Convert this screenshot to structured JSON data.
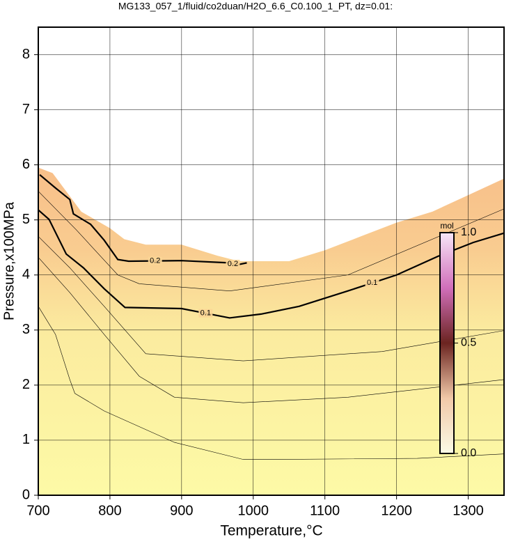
{
  "chart_data": {
    "type": "contour",
    "title": "MG133_057_1/fluid/co2duan/H2O_6.6_C0.100_1_PT, dz=0.01:",
    "xlabel": "Temperature,°C",
    "ylabel": "Pressure,x100MPa",
    "xlim": [
      700,
      1350
    ],
    "ylim": [
      0,
      8.5
    ],
    "xticks": [
      700,
      800,
      900,
      1000,
      1100,
      1200,
      1300
    ],
    "yticks": [
      0,
      1,
      2,
      3,
      4,
      5,
      6,
      7,
      8
    ],
    "grid": true,
    "field": {
      "x": [
        700,
        720,
        740,
        760,
        780,
        800,
        820,
        850,
        900,
        950,
        980,
        1000,
        1050,
        1100,
        1150,
        1200,
        1250,
        1300,
        1350
      ],
      "values": [
        5.95,
        5.85,
        5.5,
        5.15,
        5.0,
        4.85,
        4.65,
        4.55,
        4.55,
        4.35,
        4.25,
        4.25,
        4.25,
        4.45,
        4.7,
        4.95,
        5.15,
        5.45,
        5.75
      ]
    },
    "series": [
      {
        "name": "0.2",
        "color": "#000000",
        "linewidth": 2.2,
        "x": [
          702,
          724,
          744,
          749,
          773,
          792,
          811,
          826,
          900,
          967,
          976,
          991
        ],
        "values": [
          5.82,
          5.58,
          5.37,
          5.11,
          4.92,
          4.63,
          4.28,
          4.25,
          4.26,
          4.22,
          4.18,
          4.22
        ]
      },
      {
        "name": "0.1",
        "color": "#000000",
        "linewidth": 2.2,
        "x": [
          700,
          715,
          739,
          763,
          792,
          821,
          900,
          967,
          1011,
          1064,
          1132,
          1200,
          1258,
          1307,
          1350
        ],
        "values": [
          5.18,
          5.01,
          4.38,
          4.13,
          3.75,
          3.41,
          3.39,
          3.22,
          3.29,
          3.43,
          3.71,
          4.0,
          4.34,
          4.59,
          4.76
        ]
      },
      {
        "color": "#000000",
        "linewidth": 0.6,
        "x": [
          700,
          753,
          811,
          841,
          967,
          1132,
          1350
        ],
        "values": [
          5.52,
          4.82,
          4.0,
          3.84,
          3.71,
          4.0,
          5.2
        ]
      },
      {
        "color": "#000000",
        "linewidth": 0.6,
        "x": [
          700,
          744,
          792,
          850,
          986,
          1180,
          1350
        ],
        "values": [
          4.7,
          4.13,
          3.43,
          2.57,
          2.44,
          2.61,
          2.99
        ]
      },
      {
        "color": "#000000",
        "linewidth": 0.6,
        "x": [
          700,
          744,
          792,
          841,
          890,
          986,
          1132,
          1350
        ],
        "values": [
          4.32,
          3.68,
          2.92,
          2.16,
          1.78,
          1.68,
          1.78,
          2.1
        ]
      },
      {
        "color": "#000000",
        "linewidth": 0.6,
        "x": [
          700,
          724,
          744,
          751,
          792,
          890,
          986,
          1035,
          1229,
          1350
        ],
        "values": [
          3.43,
          2.92,
          2.1,
          1.85,
          1.53,
          0.96,
          0.65,
          0.65,
          0.67,
          0.75
        ]
      }
    ],
    "colorbar": {
      "label": "mol",
      "lim": [
        0,
        1
      ],
      "ticks": [
        {
          "value": 0,
          "label": "0.0"
        },
        {
          "value": 0.5,
          "label": "0.5"
        },
        {
          "value": 1,
          "label": "1.0"
        }
      ]
    }
  }
}
